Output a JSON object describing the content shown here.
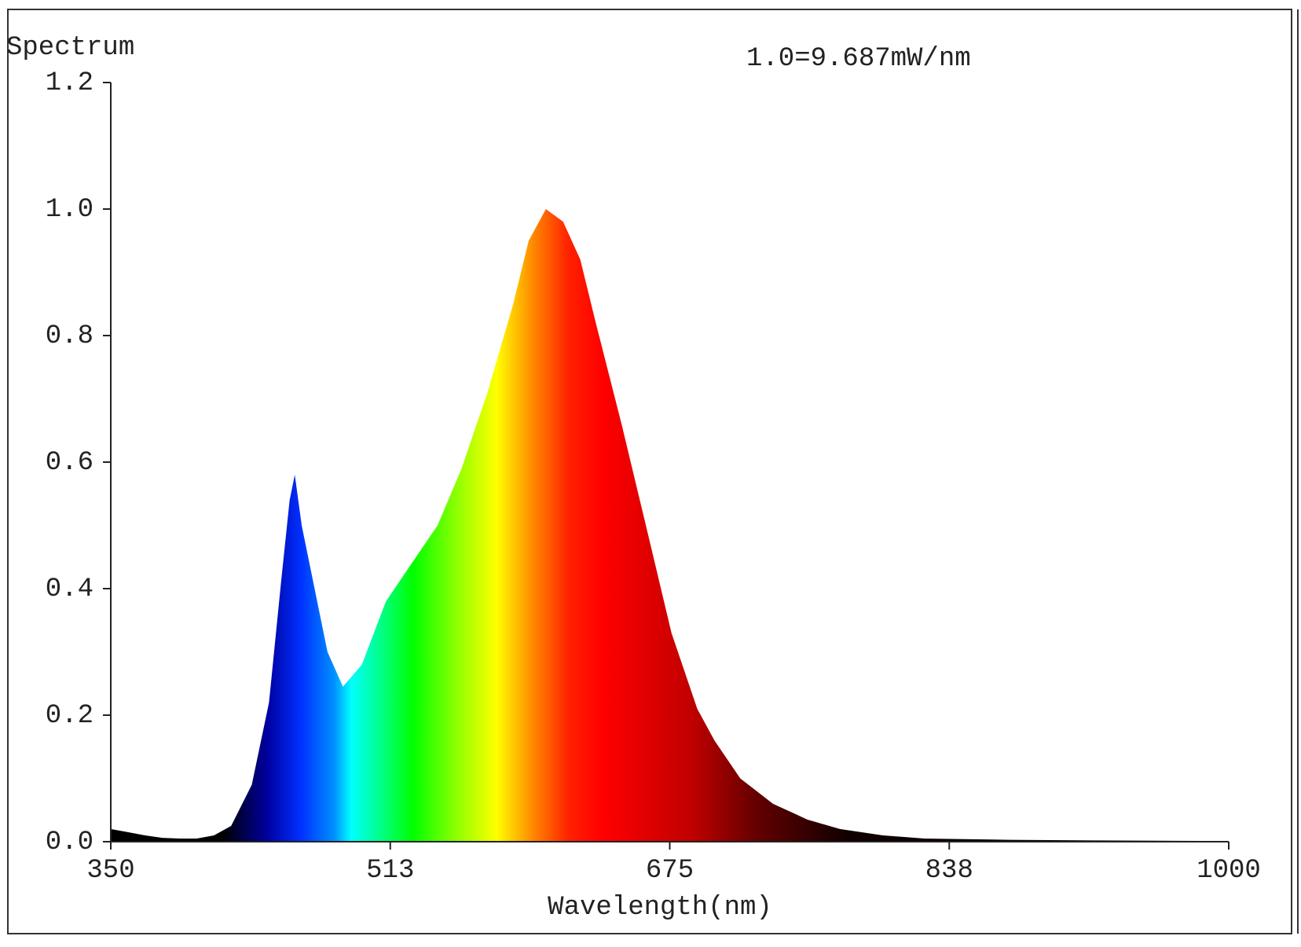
{
  "chart_data": {
    "type": "area",
    "y_label": "Spectrum",
    "annotation": "1.0=9.687mW/nm",
    "x_label": "Wavelength(nm)",
    "x": [
      350,
      360,
      370,
      380,
      390,
      400,
      410,
      420,
      432,
      442,
      449,
      454,
      457,
      461,
      470,
      476,
      485,
      496,
      510,
      525,
      540,
      554,
      569,
      584,
      593,
      603,
      613,
      623,
      632,
      647,
      662,
      676,
      691,
      701,
      716,
      735,
      755,
      774,
      799,
      823,
      872,
      921,
      1000
    ],
    "values": [
      0.02,
      0.015,
      0.01,
      0.006,
      0.005,
      0.005,
      0.01,
      0.025,
      0.09,
      0.22,
      0.41,
      0.54,
      0.58,
      0.5,
      0.38,
      0.3,
      0.245,
      0.28,
      0.38,
      0.44,
      0.5,
      0.59,
      0.71,
      0.85,
      0.95,
      1.0,
      0.98,
      0.92,
      0.82,
      0.66,
      0.49,
      0.33,
      0.21,
      0.16,
      0.1,
      0.06,
      0.035,
      0.02,
      0.01,
      0.005,
      0.003,
      0.002,
      0.001
    ],
    "xlim": [
      350,
      1000
    ],
    "xticks": [
      350,
      {
        "value": 512.5,
        "label": "513"
      },
      675,
      {
        "value": 837.5,
        "label": "838"
      },
      1000
    ],
    "ylim": [
      0,
      1.2
    ],
    "yticks": [
      {
        "value": 0,
        "label": "0.0"
      },
      0.2,
      0.4,
      0.6,
      0.8,
      {
        "value": 1,
        "label": "1.0"
      },
      1.2
    ],
    "grid": false
  }
}
